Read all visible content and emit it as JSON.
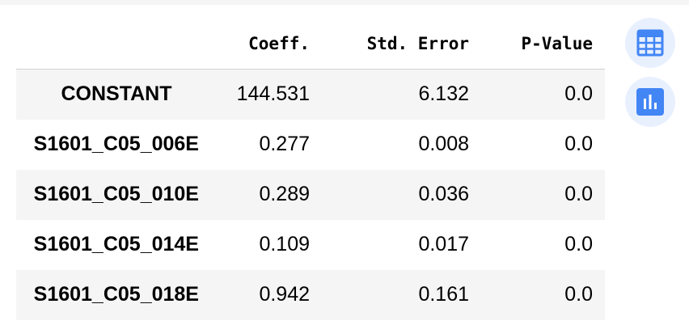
{
  "table": {
    "columns": [
      "",
      "Coeff.",
      "Std. Error",
      "P-Value"
    ],
    "rows": [
      {
        "label": "CONSTANT",
        "coeff": "144.531",
        "std_error": "6.132",
        "p_value": "0.0"
      },
      {
        "label": "S1601_C05_006E",
        "coeff": "0.277",
        "std_error": "0.008",
        "p_value": "0.0"
      },
      {
        "label": "S1601_C05_010E",
        "coeff": "0.289",
        "std_error": "0.036",
        "p_value": "0.0"
      },
      {
        "label": "S1601_C05_014E",
        "coeff": "0.109",
        "std_error": "0.017",
        "p_value": "0.0"
      },
      {
        "label": "S1601_C05_018E",
        "coeff": "0.942",
        "std_error": "0.161",
        "p_value": "0.0"
      }
    ]
  },
  "side_buttons": [
    {
      "icon": "table-icon"
    },
    {
      "icon": "bar-chart-icon"
    }
  ],
  "colors": {
    "accent": "#4285f4",
    "button_bg": "#e8f0fe",
    "stripe": "#f5f5f5"
  }
}
